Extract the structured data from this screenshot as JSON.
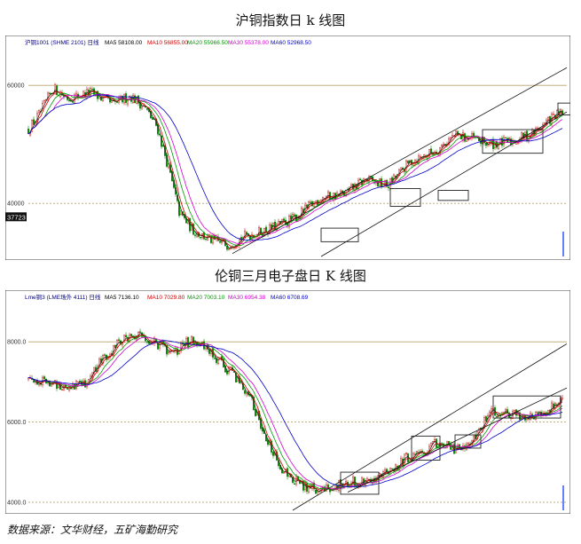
{
  "page": {
    "title1": "沪铜指数日 k 线图",
    "title2": "伦铜三月电子盘日 K 线图",
    "source": "数据来源：文华财经，五矿海勤研究"
  },
  "colors": {
    "up": "#d10000",
    "down": "#008a00",
    "ma5": "#222222",
    "ma10": "#d10000",
    "ma20": "#009900",
    "ma30": "#d400d4",
    "ma60": "#0000cc",
    "grid": "#b8a46a",
    "box": "#222222"
  },
  "chart_data": [
    {
      "type": "candlestick",
      "title": "沪铜指数日 k 线图",
      "header": {
        "symbol": "沪铜1001 (SHME 2101) 日线",
        "ma5": "MA5 58108.00",
        "ma10": "MA10 56855.00",
        "ma20": "MA20 55966.50",
        "ma30": "MA30 55378.00",
        "ma60": "MA60 52968.50"
      },
      "y_ticks": [
        {
          "label": "60000",
          "value": 60000
        },
        {
          "label": "40000",
          "value": 40000
        }
      ],
      "current_price_label": "37723",
      "ylim": [
        31000,
        66500
      ],
      "trend": [
        [
          0,
          52500
        ],
        [
          12,
          55000
        ],
        [
          28,
          59500
        ],
        [
          45,
          57800
        ],
        [
          70,
          58800
        ],
        [
          95,
          56800
        ],
        [
          115,
          58200
        ],
        [
          130,
          56500
        ],
        [
          145,
          53000
        ],
        [
          158,
          46000
        ],
        [
          170,
          38500
        ],
        [
          185,
          35500
        ],
        [
          205,
          33800
        ],
        [
          225,
          33000
        ],
        [
          245,
          34500
        ],
        [
          270,
          35500
        ],
        [
          300,
          37500
        ],
        [
          330,
          41000
        ],
        [
          355,
          41500
        ],
        [
          380,
          44000
        ],
        [
          405,
          43000
        ],
        [
          430,
          47000
        ],
        [
          460,
          49000
        ],
        [
          480,
          51500
        ],
        [
          500,
          51000
        ],
        [
          520,
          50000
        ],
        [
          545,
          50500
        ],
        [
          570,
          52000
        ],
        [
          590,
          54500
        ],
        [
          605,
          55500
        ],
        [
          620,
          57000
        ],
        [
          632,
          59000
        ]
      ],
      "ma_series": [
        {
          "label": "MA5",
          "key": "ma5",
          "window": 5
        },
        {
          "label": "MA10",
          "key": "ma10",
          "window": 10
        },
        {
          "label": "MA20",
          "key": "ma20",
          "window": 20
        },
        {
          "label": "MA30",
          "key": "ma30",
          "window": 30
        },
        {
          "label": "MA60",
          "key": "ma60",
          "window": 60
        }
      ],
      "boxes": [
        [
          330,
          33500,
          372,
          35800
        ],
        [
          408,
          39500,
          442,
          42500
        ],
        [
          462,
          40500,
          496,
          42200
        ],
        [
          512,
          48500,
          580,
          52500
        ],
        [
          597,
          55000,
          632,
          57000
        ]
      ],
      "channel": [
        [
          230,
          31500,
          655,
          63000
        ],
        [
          330,
          31000,
          655,
          55500
        ]
      ]
    },
    {
      "type": "candlestick",
      "title": "伦铜三月电子盘日 K 线图",
      "header": {
        "symbol": "Lme铜3 (LME场外 4111) 日线",
        "ma5": "MA5 7136.10",
        "ma10": "MA10 7029.80",
        "ma20": "MA20 7003.10",
        "ma30": "MA30 6954.38",
        "ma60": "MA60 6708.69"
      },
      "y_ticks": [
        {
          "label": "8000.0",
          "value": 8000
        },
        {
          "label": "6000.0",
          "value": 6000
        },
        {
          "label": "4000.0",
          "value": 4000
        }
      ],
      "ylim": [
        3800,
        9000
      ],
      "trend": [
        [
          0,
          7100
        ],
        [
          25,
          6950
        ],
        [
          45,
          6900
        ],
        [
          65,
          7000
        ],
        [
          85,
          7600
        ],
        [
          105,
          8050
        ],
        [
          125,
          8150
        ],
        [
          145,
          7950
        ],
        [
          165,
          7700
        ],
        [
          185,
          8100
        ],
        [
          200,
          7800
        ],
        [
          215,
          7500
        ],
        [
          235,
          7100
        ],
        [
          250,
          6600
        ],
        [
          265,
          5800
        ],
        [
          280,
          5000
        ],
        [
          295,
          4600
        ],
        [
          312,
          4400
        ],
        [
          330,
          4250
        ],
        [
          345,
          4400
        ],
        [
          365,
          4500
        ],
        [
          385,
          4600
        ],
        [
          405,
          4700
        ],
        [
          425,
          5100
        ],
        [
          445,
          5250
        ],
        [
          462,
          5500
        ],
        [
          480,
          5300
        ],
        [
          500,
          5500
        ],
        [
          520,
          6200
        ],
        [
          540,
          6250
        ],
        [
          560,
          6100
        ],
        [
          585,
          6300
        ],
        [
          605,
          6600
        ],
        [
          620,
          6800
        ],
        [
          632,
          7000
        ]
      ],
      "ma_series": [
        {
          "label": "MA5",
          "key": "ma5",
          "window": 5
        },
        {
          "label": "MA10",
          "key": "ma10",
          "window": 10
        },
        {
          "label": "MA20",
          "key": "ma20",
          "window": 20
        },
        {
          "label": "MA30",
          "key": "ma30",
          "window": 30
        },
        {
          "label": "MA60",
          "key": "ma60",
          "window": 60
        }
      ],
      "boxes": [
        [
          352,
          4200,
          395,
          4750
        ],
        [
          432,
          5050,
          464,
          5650
        ],
        [
          481,
          5350,
          510,
          5680
        ],
        [
          524,
          6100,
          600,
          6650
        ]
      ],
      "channel": [
        [
          298,
          3800,
          655,
          7950
        ],
        [
          360,
          4250,
          655,
          6850
        ]
      ]
    }
  ]
}
